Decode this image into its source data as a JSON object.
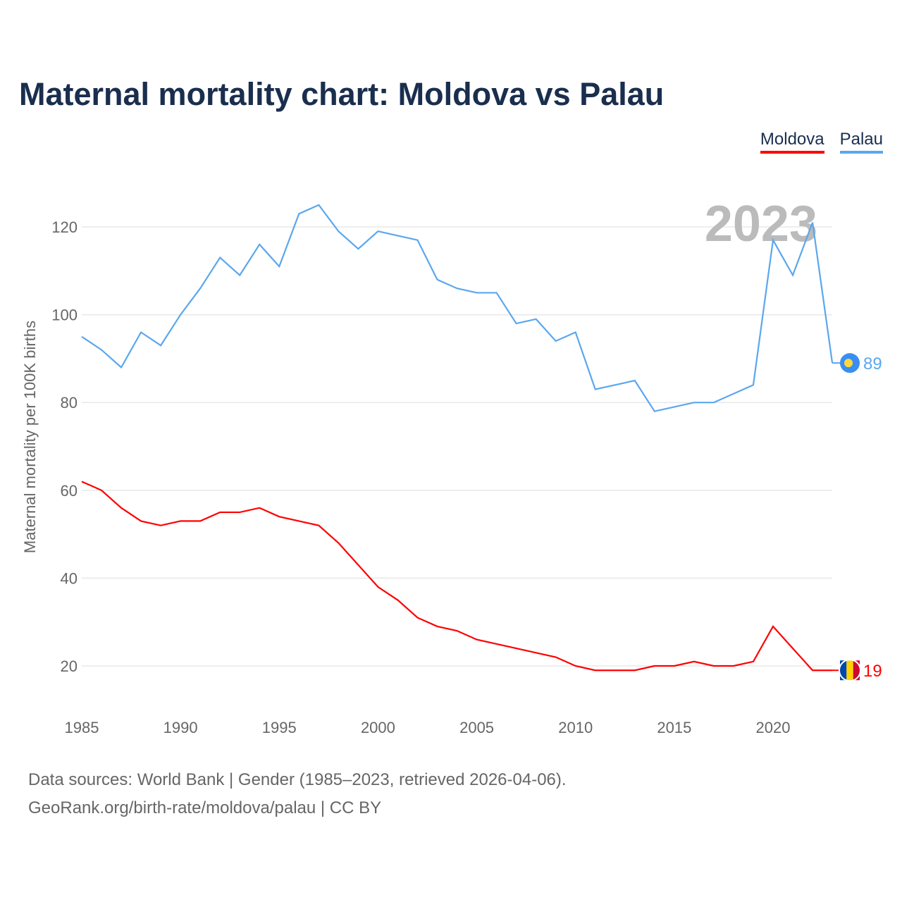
{
  "title": "Maternal mortality chart: Moldova vs Palau",
  "legend": [
    "Moldova",
    "Palau"
  ],
  "footer": {
    "line1": "Data sources: World Bank | Gender (1985–2023, retrieved 2026-04-06).",
    "line2": "GeoRank.org/birth-rate/moldova/palau | CC BY"
  },
  "chart_data": {
    "type": "line",
    "title": "Maternal mortality chart: Moldova vs Palau",
    "ylabel": "Maternal mortality per 100K births",
    "xlabel": "",
    "year_label": "2023",
    "x": [
      1985,
      1986,
      1987,
      1988,
      1989,
      1990,
      1991,
      1992,
      1993,
      1994,
      1995,
      1996,
      1997,
      1998,
      1999,
      2000,
      2001,
      2002,
      2003,
      2004,
      2005,
      2006,
      2007,
      2008,
      2009,
      2010,
      2011,
      2012,
      2013,
      2014,
      2015,
      2016,
      2017,
      2018,
      2019,
      2020,
      2021,
      2022,
      2023
    ],
    "xticks": [
      1985,
      1990,
      1995,
      2000,
      2005,
      2010,
      2015,
      2020
    ],
    "yticks": [
      20,
      40,
      60,
      80,
      100,
      120
    ],
    "xlim": [
      1985,
      2023
    ],
    "ylim": [
      10,
      130
    ],
    "grid": true,
    "legend_position": "top-right",
    "series": [
      {
        "name": "Moldova",
        "color": "#ff0000",
        "end_label": "19",
        "values": [
          62,
          60,
          56,
          53,
          52,
          53,
          53,
          55,
          55,
          56,
          54,
          53,
          52,
          48,
          43,
          38,
          35,
          31,
          29,
          28,
          26,
          25,
          24,
          23,
          22,
          20,
          19,
          19,
          19,
          20,
          20,
          21,
          20,
          20,
          21,
          29,
          24,
          19,
          19
        ]
      },
      {
        "name": "Palau",
        "color": "#5aa7ee",
        "end_label": "89",
        "values": [
          95,
          92,
          88,
          96,
          93,
          100,
          106,
          113,
          109,
          116,
          111,
          123,
          125,
          119,
          115,
          119,
          118,
          117,
          108,
          106,
          105,
          105,
          98,
          99,
          94,
          96,
          83,
          84,
          85,
          78,
          79,
          80,
          80,
          82,
          84,
          117,
          109,
          121,
          89
        ]
      }
    ]
  }
}
